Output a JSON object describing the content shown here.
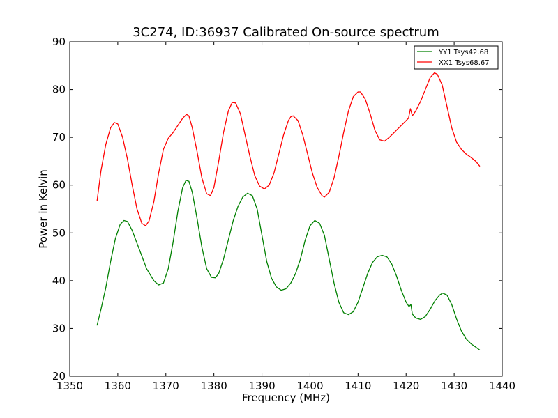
{
  "chart_data": {
    "type": "line",
    "title": "3C274, ID:36937 Calibrated On-source spectrum",
    "xlabel": "Frequency (MHz)",
    "ylabel": "Power in Kelvin",
    "xlim": [
      1350,
      1440
    ],
    "ylim": [
      20,
      90
    ],
    "xticks": [
      1350,
      1360,
      1370,
      1380,
      1390,
      1400,
      1410,
      1420,
      1430,
      1440
    ],
    "yticks": [
      20,
      30,
      40,
      50,
      60,
      70,
      80,
      90
    ],
    "legend_position": "top-right",
    "grid": false,
    "series": [
      {
        "name": "YY1 Tsys42.68",
        "color": "#008000",
        "x": [
          1355.7,
          1356.5,
          1357.5,
          1358.5,
          1359.5,
          1360.5,
          1361.3,
          1362.0,
          1363.0,
          1364.5,
          1366.0,
          1367.5,
          1368.5,
          1369.5,
          1370.5,
          1371.5,
          1372.5,
          1373.5,
          1374.2,
          1374.8,
          1375.5,
          1376.5,
          1377.5,
          1378.5,
          1379.5,
          1380.3,
          1381.0,
          1382.0,
          1383.0,
          1384.0,
          1385.0,
          1386.0,
          1387.0,
          1388.0,
          1389.0,
          1390.0,
          1391.0,
          1392.0,
          1393.0,
          1394.0,
          1395.0,
          1396.0,
          1397.0,
          1398.0,
          1399.0,
          1400.0,
          1401.0,
          1402.0,
          1403.0,
          1404.0,
          1405.0,
          1406.0,
          1407.0,
          1408.0,
          1409.0,
          1410.0,
          1411.0,
          1412.0,
          1413.0,
          1414.0,
          1415.0,
          1416.0,
          1417.0,
          1418.0,
          1419.0,
          1420.0,
          1420.6,
          1421.0,
          1421.3,
          1422.0,
          1423.0,
          1424.0,
          1425.0,
          1426.0,
          1427.0,
          1427.6,
          1428.5,
          1429.5,
          1430.5,
          1431.5,
          1432.5,
          1433.5,
          1434.5,
          1435.3
        ],
        "y": [
          30.7,
          34.0,
          38.5,
          44.0,
          48.8,
          51.8,
          52.6,
          52.4,
          50.5,
          46.5,
          42.5,
          40.0,
          39.1,
          39.5,
          42.5,
          48.0,
          54.5,
          59.5,
          61.0,
          60.8,
          58.5,
          53.0,
          47.0,
          42.5,
          40.7,
          40.6,
          41.5,
          44.5,
          48.5,
          52.5,
          55.5,
          57.5,
          58.3,
          57.8,
          55.0,
          49.5,
          44.0,
          40.5,
          38.7,
          38.0,
          38.3,
          39.5,
          41.5,
          44.5,
          48.5,
          51.5,
          52.6,
          52.0,
          49.5,
          44.5,
          39.5,
          35.5,
          33.3,
          32.9,
          33.5,
          35.5,
          38.5,
          41.5,
          43.8,
          45.0,
          45.3,
          45.0,
          43.5,
          41.0,
          38.0,
          35.5,
          34.6,
          35.0,
          33.0,
          32.2,
          31.9,
          32.5,
          34.0,
          35.8,
          37.0,
          37.4,
          37.0,
          35.0,
          32.0,
          29.5,
          27.8,
          26.8,
          26.1,
          25.5
        ]
      },
      {
        "name": "XX1 Tsys68.67",
        "color": "#ff0000",
        "x": [
          1355.7,
          1356.5,
          1357.5,
          1358.5,
          1359.3,
          1360.0,
          1361.0,
          1362.0,
          1363.0,
          1364.0,
          1365.0,
          1365.8,
          1366.5,
          1367.5,
          1368.5,
          1369.5,
          1370.5,
          1371.5,
          1372.5,
          1373.5,
          1374.3,
          1374.8,
          1375.5,
          1376.5,
          1377.5,
          1378.5,
          1379.3,
          1380.0,
          1381.0,
          1382.0,
          1383.0,
          1383.8,
          1384.5,
          1385.5,
          1386.5,
          1387.5,
          1388.5,
          1389.5,
          1390.5,
          1391.5,
          1392.5,
          1393.5,
          1394.5,
          1395.5,
          1396.0,
          1396.5,
          1397.5,
          1398.5,
          1399.5,
          1400.5,
          1401.5,
          1402.5,
          1403.0,
          1404.0,
          1405.0,
          1406.0,
          1407.0,
          1408.0,
          1409.0,
          1410.0,
          1410.5,
          1411.5,
          1412.5,
          1413.5,
          1414.5,
          1415.5,
          1416.5,
          1417.5,
          1418.5,
          1419.5,
          1420.5,
          1420.9,
          1421.3,
          1422.0,
          1423.0,
          1424.0,
          1425.0,
          1425.9,
          1426.5,
          1427.5,
          1428.5,
          1429.5,
          1430.5,
          1431.5,
          1432.5,
          1433.5,
          1434.5,
          1435.3
        ],
        "y": [
          56.8,
          63.0,
          68.5,
          72.0,
          73.1,
          72.8,
          70.0,
          65.5,
          60.0,
          55.0,
          52.0,
          51.5,
          52.5,
          56.5,
          62.5,
          67.5,
          69.8,
          71.0,
          72.5,
          74.0,
          74.8,
          74.5,
          72.0,
          67.0,
          61.5,
          58.2,
          57.8,
          59.5,
          65.0,
          71.0,
          75.5,
          77.3,
          77.2,
          75.0,
          70.5,
          66.0,
          62.0,
          59.8,
          59.2,
          60.0,
          62.5,
          66.5,
          70.5,
          73.5,
          74.3,
          74.5,
          73.5,
          70.5,
          66.5,
          62.5,
          59.5,
          57.8,
          57.5,
          58.5,
          61.5,
          66.0,
          71.0,
          75.5,
          78.5,
          79.5,
          79.5,
          78.0,
          75.0,
          71.5,
          69.5,
          69.2,
          70.0,
          71.0,
          72.0,
          73.0,
          74.0,
          76.0,
          74.5,
          75.5,
          77.5,
          80.0,
          82.5,
          83.5,
          83.2,
          81.0,
          76.5,
          72.0,
          69.0,
          67.5,
          66.5,
          65.8,
          65.0,
          64.0
        ]
      }
    ]
  }
}
